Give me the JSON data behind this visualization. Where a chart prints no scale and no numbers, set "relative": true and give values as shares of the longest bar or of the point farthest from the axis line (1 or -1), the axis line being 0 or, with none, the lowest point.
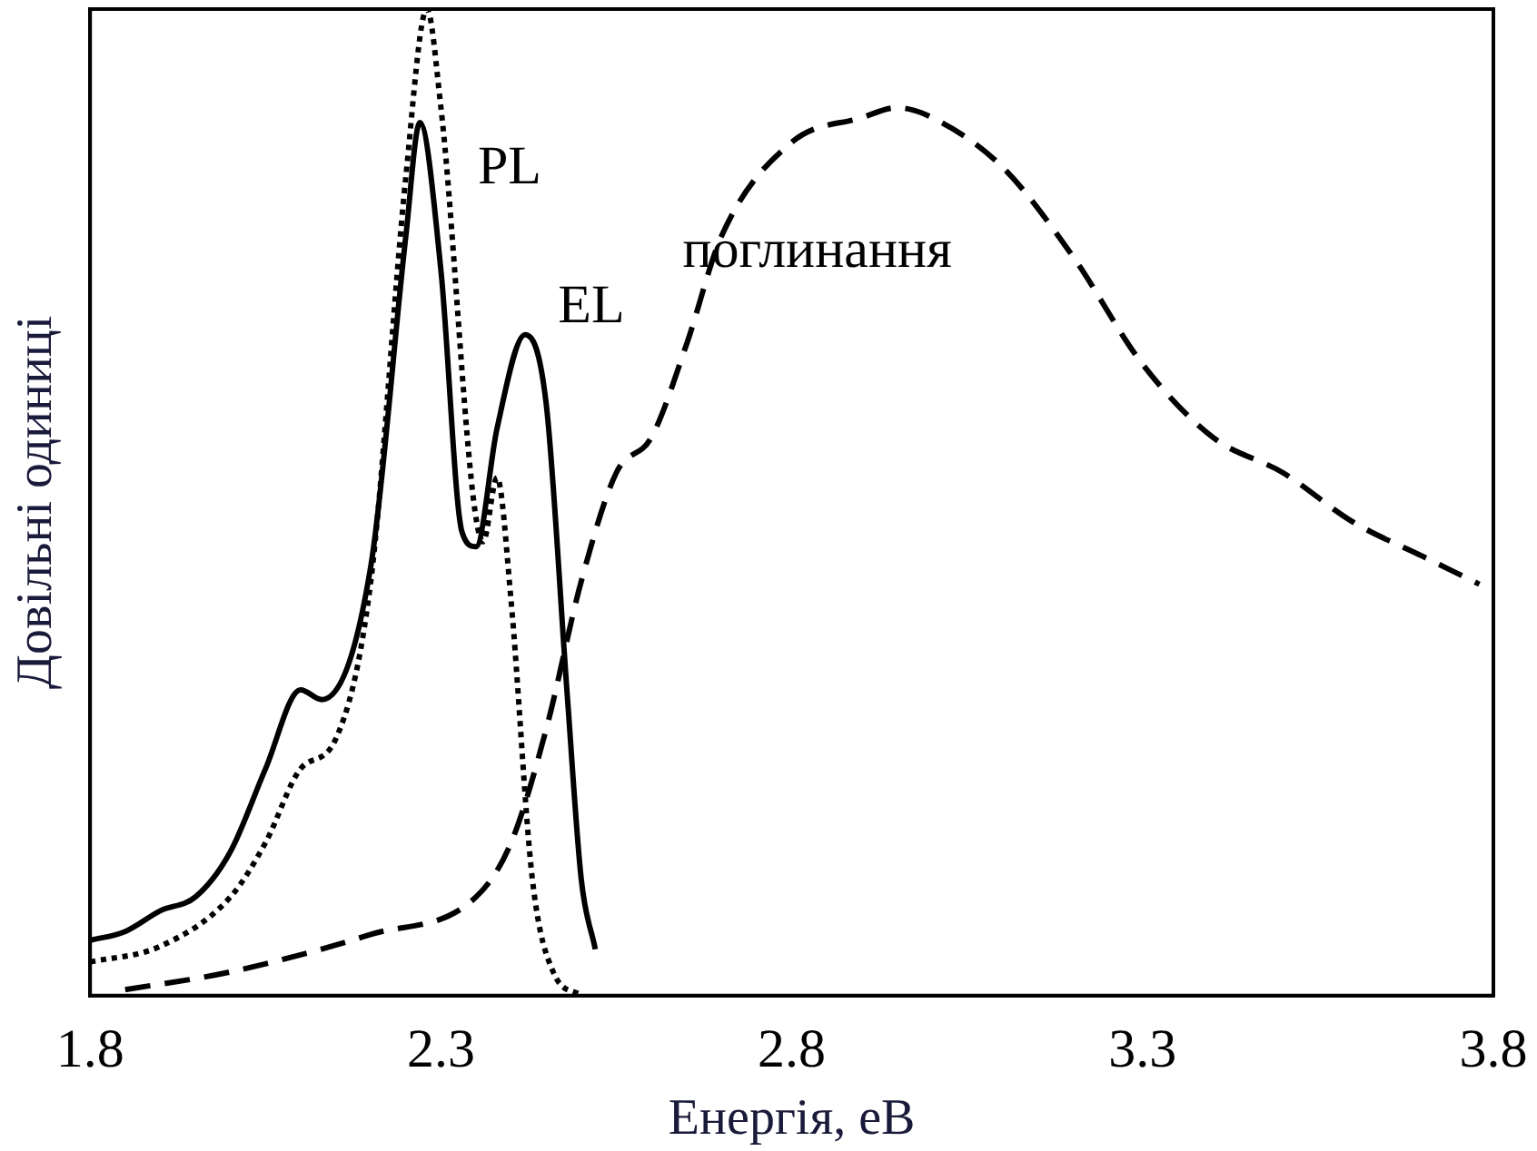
{
  "chart_data": {
    "type": "line",
    "relative": true,
    "xlabel": "Енергія, еВ",
    "ylabel": "Довільні одиниці",
    "xlim": [
      1.8,
      3.8
    ],
    "xticks": [
      1.8,
      2.3,
      2.8,
      3.3,
      3.8
    ],
    "grid": false,
    "legend": false,
    "marker": "none",
    "series": [
      {
        "name": "PL",
        "color": "#000000",
        "line_style": "dotted",
        "x": [
          1.8,
          1.9,
          2.0,
          2.05,
          2.1,
          2.15,
          2.2,
          2.25,
          2.28,
          2.3,
          2.36,
          2.38,
          2.4,
          2.43,
          2.46,
          2.5
        ],
        "values": [
          0.034,
          0.05,
          0.1,
          0.155,
          0.23,
          0.26,
          0.42,
          0.83,
          1.0,
          0.9,
          0.46,
          0.525,
          0.4,
          0.12,
          0.024,
          0
        ]
      },
      {
        "name": "EL",
        "color": "#000000",
        "line_style": "solid",
        "x": [
          1.8,
          1.85,
          1.9,
          1.95,
          2.0,
          2.05,
          2.1,
          2.13,
          2.2,
          2.25,
          2.27,
          2.3,
          2.33,
          2.35,
          2.38,
          2.42,
          2.45,
          2.48,
          2.5,
          2.52
        ],
        "values": [
          0.056,
          0.065,
          0.086,
          0.1,
          0.146,
          0.23,
          0.31,
          0.3,
          0.435,
          0.77,
          0.885,
          0.735,
          0.47,
          0.455,
          0.575,
          0.67,
          0.6,
          0.305,
          0.118,
          0.047
        ]
      },
      {
        "name": "поглинання",
        "color": "#000000",
        "line_style": "dashed",
        "x": [
          1.85,
          2.0,
          2.2,
          2.35,
          2.4,
          2.45,
          2.5,
          2.55,
          2.6,
          2.65,
          2.7,
          2.8,
          2.9,
          2.95,
          3.0,
          3.1,
          3.2,
          3.3,
          3.4,
          3.5,
          3.6,
          3.7,
          3.78
        ],
        "values": [
          0.006,
          0.024,
          0.062,
          0.1,
          0.155,
          0.27,
          0.42,
          0.53,
          0.566,
          0.66,
          0.77,
          0.865,
          0.89,
          0.9,
          0.89,
          0.84,
          0.75,
          0.64,
          0.566,
          0.53,
          0.48,
          0.445,
          0.417
        ]
      }
    ]
  }
}
